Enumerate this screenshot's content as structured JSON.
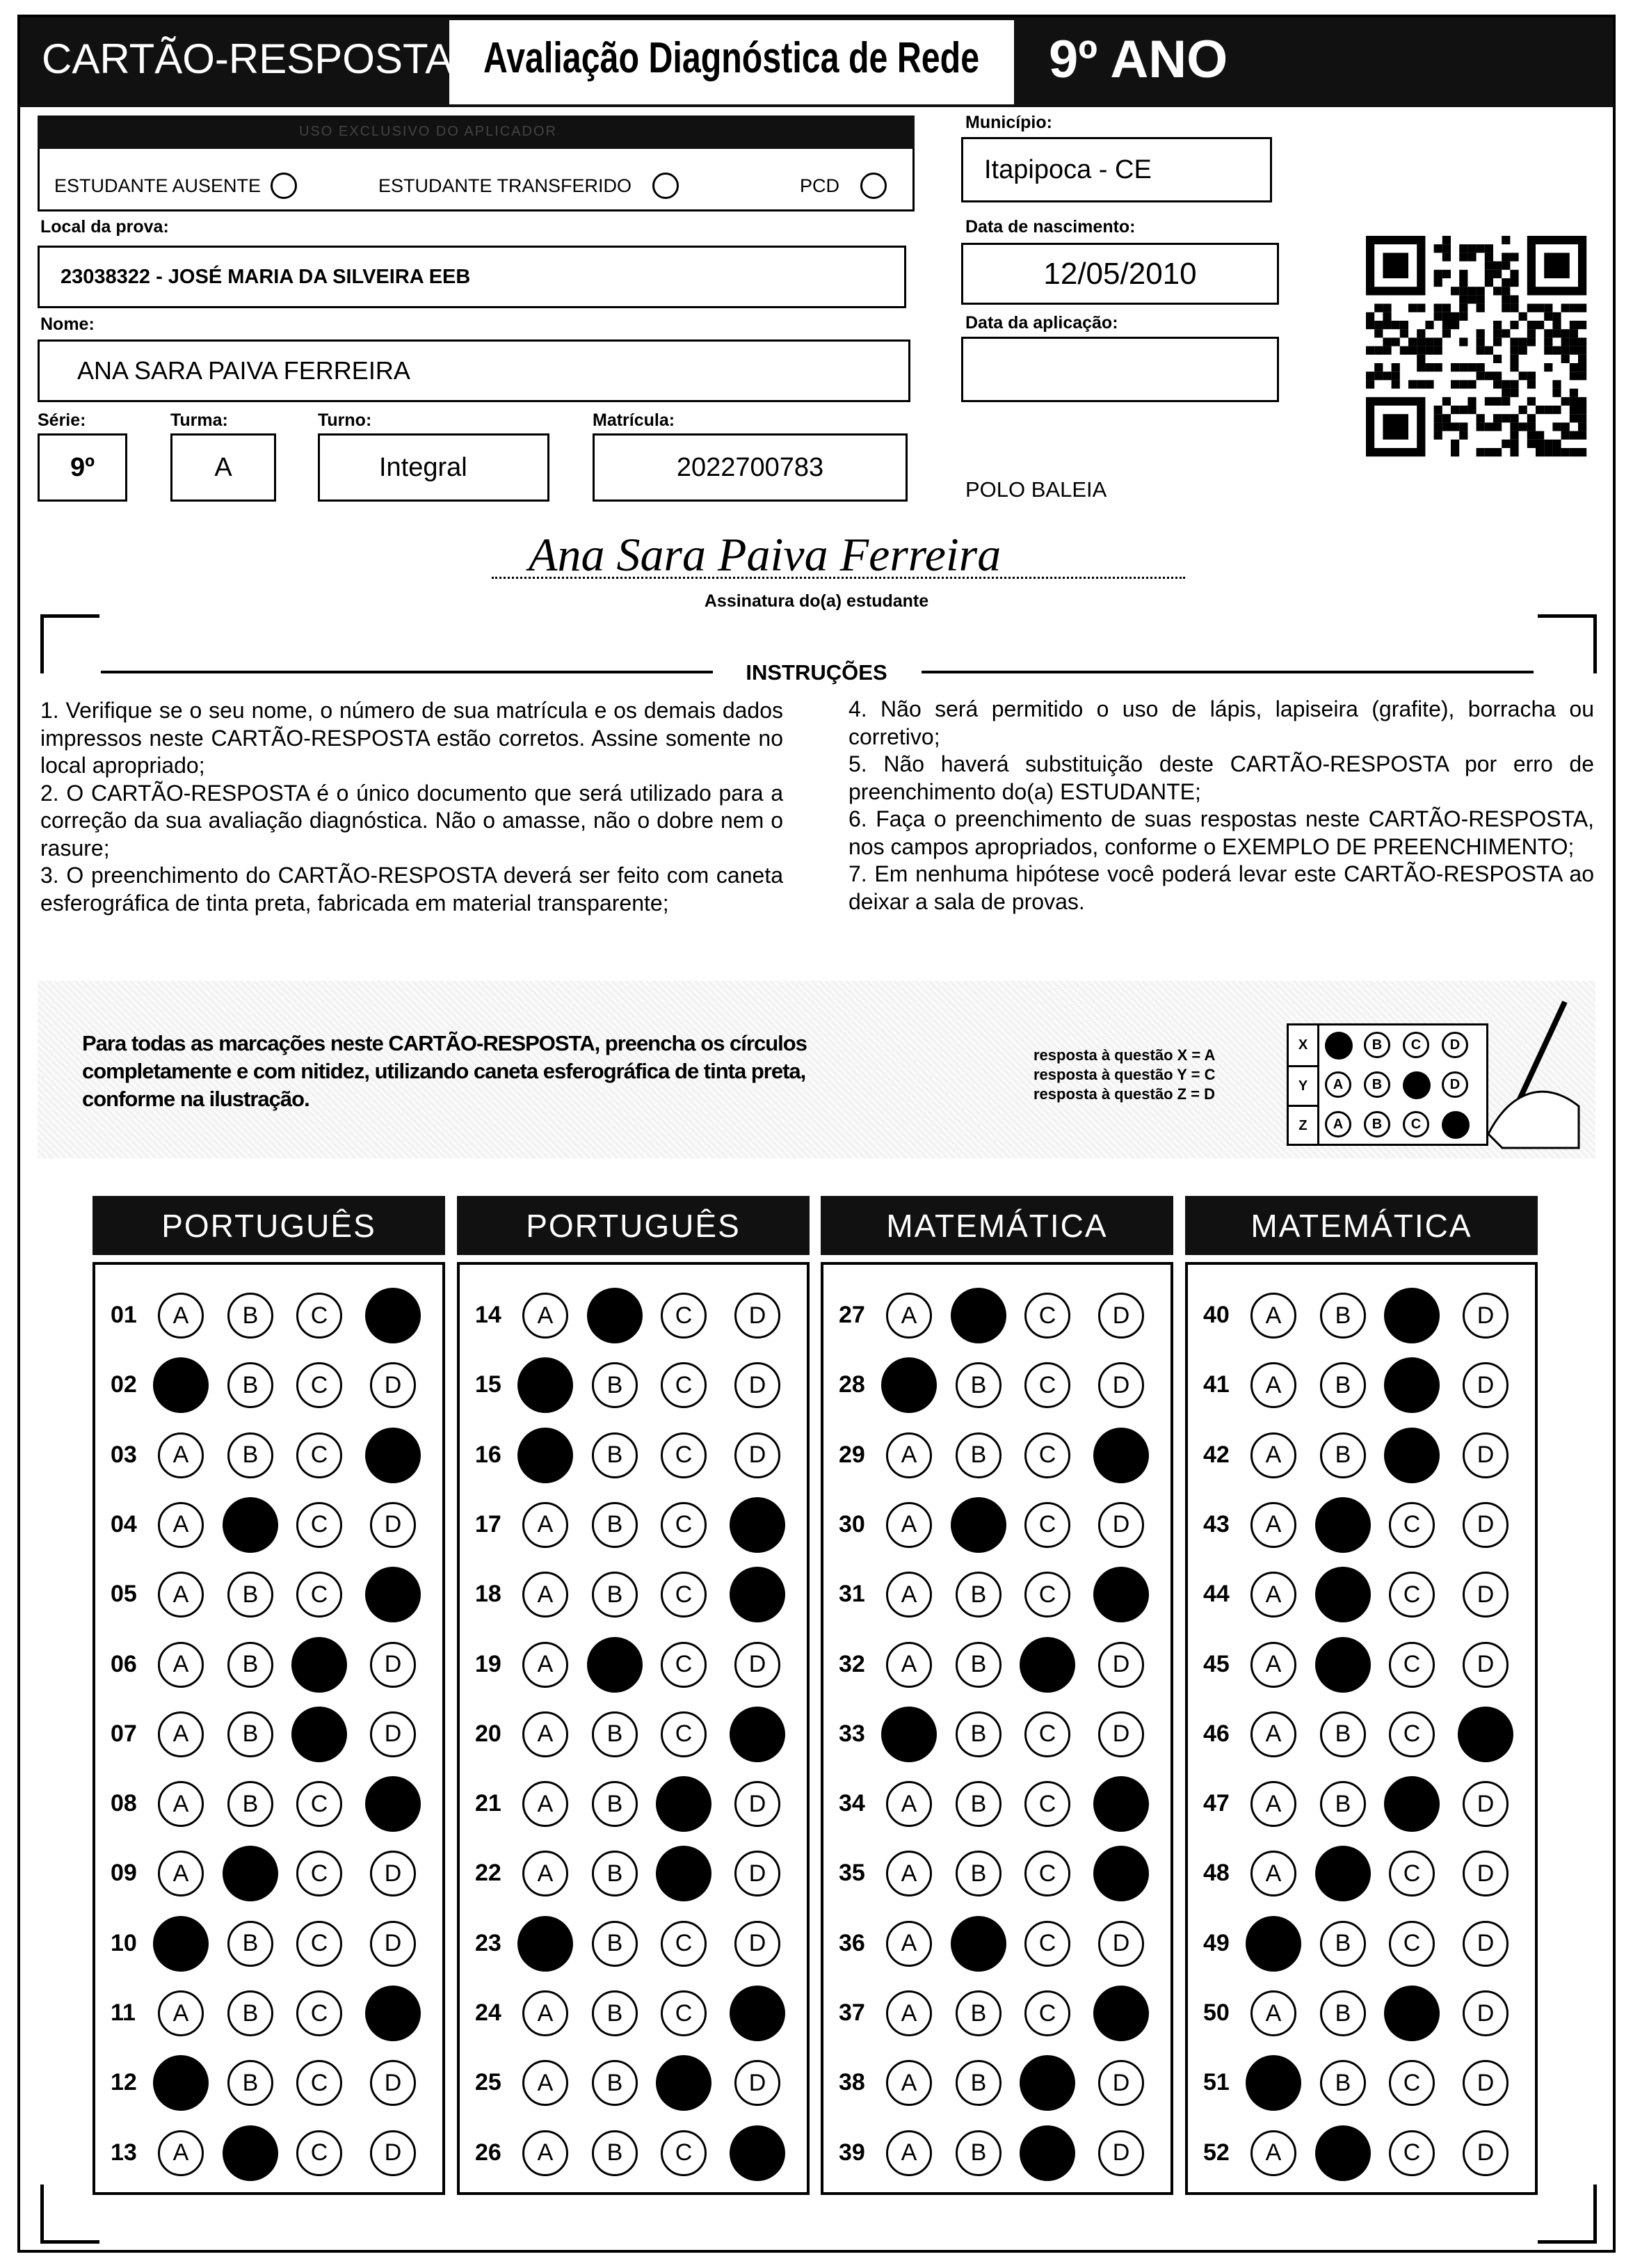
{
  "header": {
    "title": "CARTÃO-RESPOSTA",
    "evaluation": "Avaliação Diagnóstica de Rede",
    "grade": "9º ANO"
  },
  "applicator": {
    "title": "USO EXCLUSIVO DO APLICADOR",
    "options": [
      "ESTUDANTE AUSENTE",
      "ESTUDANTE TRANSFERIDO",
      "PCD"
    ]
  },
  "fields": {
    "municipio": {
      "label": "Município:",
      "value": "Itapipoca - CE"
    },
    "local": {
      "label": "Local da prova:",
      "value": "23038322 - JOSÉ MARIA DA SILVEIRA EEB"
    },
    "nascimento": {
      "label": "Data de nascimento:",
      "value": "12/05/2010"
    },
    "nome": {
      "label": "Nome:",
      "value": "ANA SARA PAIVA FERREIRA"
    },
    "aplicacao": {
      "label": "Data da aplicação:"
    },
    "serie": {
      "label": "Série:",
      "value": "9º"
    },
    "turma": {
      "label": "Turma:",
      "value": "A"
    },
    "turno": {
      "label": "Turno:",
      "value": "Integral"
    },
    "matricula": {
      "label": "Matrícula:",
      "value": "2022700783"
    }
  },
  "polo": "POLO BALEIA",
  "signature": {
    "handwritten": "Ana Sara Paiva Ferreira",
    "label": "Assinatura do(a) estudante"
  },
  "instructions": {
    "title": "INSTRUÇÕES",
    "items": [
      "1. Verifique se o seu nome, o número de sua matrícula e os demais dados impressos neste CARTÃO-RESPOSTA estão corretos. Assine somente no local apropriado;",
      "2. O CARTÃO-RESPOSTA é o único documento que será utilizado para a correção da sua avaliação diagnóstica. Não o amasse, não o dobre nem o rasure;",
      "3. O preenchimento do CARTÃO-RESPOSTA deverá ser feito com caneta esferográfica de tinta preta, fabricada em material transparente;",
      "4. Não será permitido o uso de lápis, lapiseira (grafite), borracha ou corretivo;",
      "5. Não haverá substituição deste CARTÃO-RESPOSTA por erro de preenchimento do(a) ESTUDANTE;",
      "6. Faça o preenchimento de suas respostas neste CARTÃO-RESPOSTA, nos campos apropriados, conforme o EXEMPLO DE PREENCHIMENTO;",
      "7. Em nenhuma hipótese você poderá levar este CARTÃO-RESPOSTA ao deixar a sala de provas."
    ]
  },
  "example": {
    "text": "Para todas as marcações neste CARTÃO-RESPOSTA, preencha os círculos completamente e com nitidez, utilizando caneta esferográfica de tinta preta, conforme na ilustração.",
    "legend": [
      "resposta à questão X = A",
      "resposta à questão Y = C",
      "resposta à questão Z = D"
    ],
    "rows": [
      {
        "label": "X",
        "answer": "A"
      },
      {
        "label": "Y",
        "answer": "C"
      },
      {
        "label": "Z",
        "answer": "D"
      }
    ]
  },
  "options": [
    "A",
    "B",
    "C",
    "D"
  ],
  "sections": [
    {
      "title": "PORTUGUÊS",
      "questions": [
        {
          "number": "01",
          "answer": "D"
        },
        {
          "number": "02",
          "answer": "A"
        },
        {
          "number": "03",
          "answer": "D"
        },
        {
          "number": "04",
          "answer": "B"
        },
        {
          "number": "05",
          "answer": "D"
        },
        {
          "number": "06",
          "answer": "C"
        },
        {
          "number": "07",
          "answer": "C"
        },
        {
          "number": "08",
          "answer": "D"
        },
        {
          "number": "09",
          "answer": "B"
        },
        {
          "number": "10",
          "answer": "A"
        },
        {
          "number": "11",
          "answer": "D"
        },
        {
          "number": "12",
          "answer": "A"
        },
        {
          "number": "13",
          "answer": "B"
        }
      ]
    },
    {
      "title": "PORTUGUÊS",
      "questions": [
        {
          "number": "14",
          "answer": "B"
        },
        {
          "number": "15",
          "answer": "A"
        },
        {
          "number": "16",
          "answer": "A"
        },
        {
          "number": "17",
          "answer": "D"
        },
        {
          "number": "18",
          "answer": "D"
        },
        {
          "number": "19",
          "answer": "B"
        },
        {
          "number": "20",
          "answer": "D"
        },
        {
          "number": "21",
          "answer": "C"
        },
        {
          "number": "22",
          "answer": "C"
        },
        {
          "number": "23",
          "answer": "A"
        },
        {
          "number": "24",
          "answer": "D"
        },
        {
          "number": "25",
          "answer": "C"
        },
        {
          "number": "26",
          "answer": "D"
        }
      ]
    },
    {
      "title": "MATEMÁTICA",
      "questions": [
        {
          "number": "27",
          "answer": "B"
        },
        {
          "number": "28",
          "answer": "A"
        },
        {
          "number": "29",
          "answer": "D"
        },
        {
          "number": "30",
          "answer": "B"
        },
        {
          "number": "31",
          "answer": "D"
        },
        {
          "number": "32",
          "answer": "C"
        },
        {
          "number": "33",
          "answer": "A"
        },
        {
          "number": "34",
          "answer": "D"
        },
        {
          "number": "35",
          "answer": "D"
        },
        {
          "number": "36",
          "answer": "B"
        },
        {
          "number": "37",
          "answer": "D"
        },
        {
          "number": "38",
          "answer": "C"
        },
        {
          "number": "39",
          "answer": "C"
        }
      ]
    },
    {
      "title": "MATEMÁTICA",
      "questions": [
        {
          "number": "40",
          "answer": "C"
        },
        {
          "number": "41",
          "answer": "C"
        },
        {
          "number": "42",
          "answer": "C"
        },
        {
          "number": "43",
          "answer": "B"
        },
        {
          "number": "44",
          "answer": "B"
        },
        {
          "number": "45",
          "answer": "B"
        },
        {
          "number": "46",
          "answer": "D"
        },
        {
          "number": "47",
          "answer": "C"
        },
        {
          "number": "48",
          "answer": "B"
        },
        {
          "number": "49",
          "answer": "A"
        },
        {
          "number": "50",
          "answer": "C"
        },
        {
          "number": "51",
          "answer": "A"
        },
        {
          "number": "52",
          "answer": "B"
        }
      ]
    }
  ]
}
